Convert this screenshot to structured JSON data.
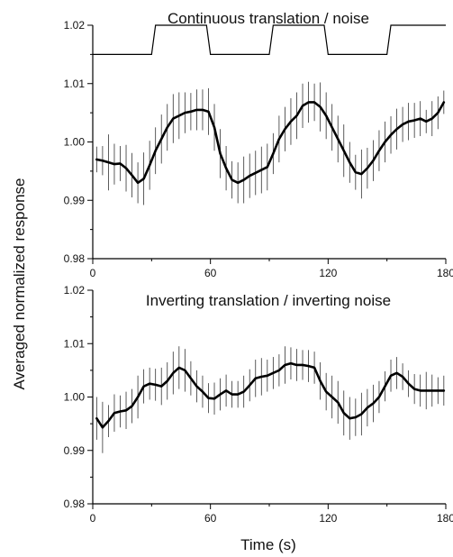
{
  "chart_data": {
    "type": "line",
    "ylabel": "Averaged normalized response",
    "xlabel": "Time (s)",
    "panels": [
      {
        "title": "Continuous translation / noise",
        "xlim": [
          0,
          180
        ],
        "ylim": [
          0.98,
          1.02
        ],
        "xticks": [
          0,
          60,
          120,
          180
        ],
        "yticks": [
          0.98,
          0.99,
          1.0,
          1.01,
          1.02
        ],
        "ytick_labels": [
          "0.98",
          "0.99",
          "1.00",
          "1.01",
          "1.02"
        ],
        "stimulus_trace": {
          "x": [
            0,
            30,
            32,
            58,
            60,
            90,
            92,
            118,
            120,
            150,
            152,
            180
          ],
          "y": [
            1.015,
            1.015,
            1.02,
            1.02,
            1.015,
            1.015,
            1.02,
            1.02,
            1.015,
            1.015,
            1.02,
            1.02
          ]
        },
        "series": [
          {
            "x": [
              2,
              5,
              8,
              11,
              14,
              17,
              20,
              23,
              26,
              29,
              32,
              35,
              38,
              41,
              44,
              47,
              50,
              53,
              56,
              59,
              62,
              65,
              68,
              71,
              74,
              77,
              80,
              83,
              86,
              89,
              92,
              95,
              98,
              101,
              104,
              107,
              110,
              113,
              116,
              119,
              122,
              125,
              128,
              131,
              134,
              137,
              140,
              143,
              146,
              149,
              152,
              155,
              158,
              161,
              164,
              167,
              170,
              173,
              176,
              179
            ],
            "values": [
              0.997,
              0.9968,
              0.9965,
              0.9962,
              0.9963,
              0.9955,
              0.9943,
              0.993,
              0.9937,
              0.996,
              0.9985,
              1.0005,
              1.0025,
              1.004,
              1.0045,
              1.005,
              1.0052,
              1.0055,
              1.0055,
              1.0052,
              1.0025,
              0.998,
              0.9955,
              0.9935,
              0.993,
              0.9935,
              0.9942,
              0.9947,
              0.9952,
              0.9957,
              0.998,
              1.0005,
              1.0022,
              1.0035,
              1.0045,
              1.0062,
              1.0068,
              1.0068,
              1.006,
              1.0045,
              1.0025,
              1.0005,
              0.9985,
              0.9965,
              0.9948,
              0.9945,
              0.9955,
              0.9968,
              0.9985,
              1.0,
              1.0012,
              1.0022,
              1.003,
              1.0035,
              1.0037,
              1.004,
              1.0035,
              1.004,
              1.005,
              1.0068
            ],
            "errors": [
              0.0022,
              0.0025,
              0.0048,
              0.0035,
              0.003,
              0.004,
              0.0038,
              0.0035,
              0.0045,
              0.0042,
              0.004,
              0.0042,
              0.004,
              0.0042,
              0.004,
              0.0035,
              0.0032,
              0.0035,
              0.0035,
              0.004,
              0.004,
              0.0042,
              0.0038,
              0.0032,
              0.0035,
              0.004,
              0.0038,
              0.0038,
              0.004,
              0.004,
              0.0035,
              0.004,
              0.0038,
              0.004,
              0.004,
              0.0038,
              0.0035,
              0.0032,
              0.0042,
              0.004,
              0.004,
              0.004,
              0.0045,
              0.0035,
              0.003,
              0.0042,
              0.0035,
              0.0035,
              0.0035,
              0.0035,
              0.0032,
              0.0035,
              0.003,
              0.0032,
              0.003,
              0.003,
              0.002,
              0.003,
              0.0028,
              0.002
            ]
          }
        ]
      },
      {
        "title": "Inverting translation / inverting noise",
        "xlim": [
          0,
          180
        ],
        "ylim": [
          0.98,
          1.02
        ],
        "xticks": [
          0,
          60,
          120,
          180
        ],
        "yticks": [
          0.98,
          0.99,
          1.0,
          1.01,
          1.02
        ],
        "ytick_labels": [
          "0.98",
          "0.99",
          "1.00",
          "1.01",
          "1.02"
        ],
        "series": [
          {
            "x": [
              2,
              5,
              8,
              11,
              14,
              17,
              20,
              23,
              26,
              29,
              32,
              35,
              38,
              41,
              44,
              47,
              50,
              53,
              56,
              59,
              62,
              65,
              68,
              71,
              74,
              77,
              80,
              83,
              86,
              89,
              92,
              95,
              98,
              101,
              104,
              107,
              110,
              113,
              116,
              119,
              122,
              125,
              128,
              131,
              134,
              137,
              140,
              143,
              146,
              149,
              152,
              155,
              158,
              161,
              164,
              167,
              170,
              173,
              176,
              179
            ],
            "values": [
              0.996,
              0.9943,
              0.9955,
              0.997,
              0.9973,
              0.9975,
              0.9983,
              1.0,
              1.002,
              1.0025,
              1.0023,
              1.002,
              1.003,
              1.0045,
              1.0055,
              1.005,
              1.0035,
              1.002,
              1.001,
              0.9998,
              0.9997,
              1.0005,
              1.0012,
              1.0005,
              1.0005,
              1.001,
              1.0022,
              1.0035,
              1.0038,
              1.004,
              1.0045,
              1.005,
              1.006,
              1.0063,
              1.006,
              1.006,
              1.0058,
              1.0055,
              1.003,
              1.001,
              1.0,
              0.999,
              0.997,
              0.996,
              0.9962,
              0.9968,
              0.998,
              0.9988,
              1.0,
              1.002,
              1.004,
              1.0045,
              1.0038,
              1.0025,
              1.0015,
              1.0012,
              1.0012,
              1.0012,
              1.0012,
              1.0012
            ],
            "errors": [
              0.004,
              0.0048,
              0.003,
              0.0035,
              0.003,
              0.0035,
              0.0032,
              0.004,
              0.0032,
              0.003,
              0.003,
              0.0035,
              0.0035,
              0.004,
              0.004,
              0.004,
              0.0032,
              0.003,
              0.003,
              0.0028,
              0.003,
              0.003,
              0.003,
              0.0025,
              0.0025,
              0.003,
              0.003,
              0.0035,
              0.0035,
              0.003,
              0.003,
              0.003,
              0.0035,
              0.003,
              0.003,
              0.0028,
              0.003,
              0.003,
              0.0035,
              0.0035,
              0.004,
              0.004,
              0.0042,
              0.004,
              0.0035,
              0.004,
              0.0035,
              0.0035,
              0.003,
              0.0028,
              0.003,
              0.003,
              0.0025,
              0.0025,
              0.0028,
              0.003,
              0.0035,
              0.003,
              0.0025,
              0.0028
            ]
          }
        ]
      }
    ]
  }
}
